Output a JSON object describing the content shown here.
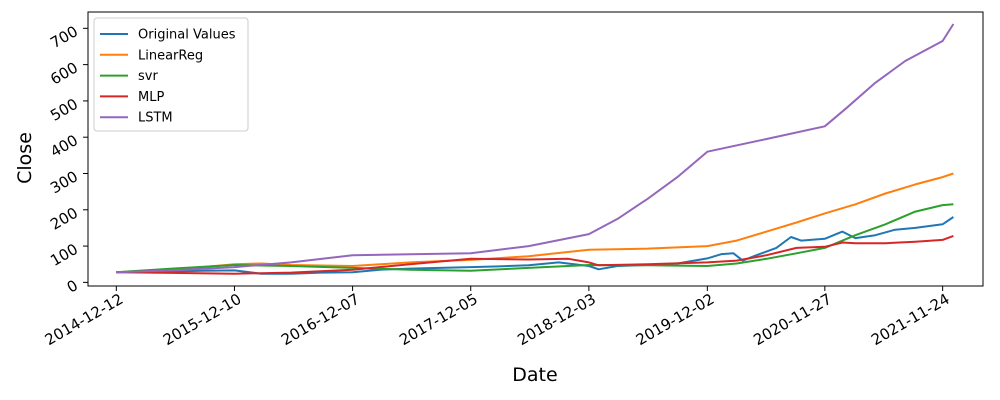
{
  "chart_data": {
    "type": "line",
    "xlabel": "Date",
    "ylabel": "Close",
    "x_ticks": [
      "2014-12-12",
      "2015-12-10",
      "2016-12-07",
      "2017-12-05",
      "2018-12-03",
      "2019-12-02",
      "2020-11-27",
      "2021-11-24"
    ],
    "y_ticks": [
      0,
      100,
      200,
      300,
      400,
      500,
      600,
      700
    ],
    "xlim": [
      "2014-09-16",
      "2022-03-28"
    ],
    "ylim": [
      -10,
      745
    ],
    "grid": false,
    "legend_position": "top-left",
    "series": [
      {
        "name": "Original Values",
        "color": "#1f77b4",
        "points": [
          [
            "2014-12-12",
            28
          ],
          [
            "2015-03-01",
            29
          ],
          [
            "2015-06-01",
            30
          ],
          [
            "2015-09-01",
            32
          ],
          [
            "2015-12-10",
            33
          ],
          [
            "2016-03-01",
            24
          ],
          [
            "2016-06-01",
            24
          ],
          [
            "2016-09-01",
            27
          ],
          [
            "2016-12-07",
            28
          ],
          [
            "2017-03-01",
            35
          ],
          [
            "2017-06-01",
            38
          ],
          [
            "2017-09-01",
            40
          ],
          [
            "2017-12-05",
            42
          ],
          [
            "2018-03-01",
            44
          ],
          [
            "2018-06-01",
            47
          ],
          [
            "2018-09-01",
            55
          ],
          [
            "2018-12-03",
            45
          ],
          [
            "2019-01-02",
            36
          ],
          [
            "2019-03-01",
            45
          ],
          [
            "2019-06-01",
            48
          ],
          [
            "2019-09-01",
            52
          ],
          [
            "2019-12-02",
            66
          ],
          [
            "2020-01-15",
            78
          ],
          [
            "2020-02-20",
            80
          ],
          [
            "2020-03-20",
            60
          ],
          [
            "2020-05-01",
            75
          ],
          [
            "2020-07-01",
            95
          ],
          [
            "2020-08-15",
            125
          ],
          [
            "2020-09-15",
            115
          ],
          [
            "2020-11-27",
            120
          ],
          [
            "2021-01-20",
            140
          ],
          [
            "2021-03-01",
            122
          ],
          [
            "2021-05-01",
            130
          ],
          [
            "2021-07-01",
            145
          ],
          [
            "2021-09-01",
            150
          ],
          [
            "2021-11-24",
            160
          ],
          [
            "2021-12-27",
            180
          ]
        ]
      },
      {
        "name": "LinearReg",
        "color": "#ff7f0e",
        "points": [
          [
            "2014-12-12",
            28
          ],
          [
            "2015-06-01",
            35
          ],
          [
            "2015-12-10",
            50
          ],
          [
            "2016-03-01",
            52
          ],
          [
            "2016-06-01",
            48
          ],
          [
            "2016-12-07",
            45
          ],
          [
            "2017-06-01",
            55
          ],
          [
            "2017-12-05",
            62
          ],
          [
            "2018-06-01",
            72
          ],
          [
            "2018-12-03",
            90
          ],
          [
            "2019-06-01",
            93
          ],
          [
            "2019-12-02",
            100
          ],
          [
            "2020-03-01",
            115
          ],
          [
            "2020-06-01",
            140
          ],
          [
            "2020-09-01",
            165
          ],
          [
            "2020-11-27",
            190
          ],
          [
            "2021-03-01",
            215
          ],
          [
            "2021-06-01",
            245
          ],
          [
            "2021-09-01",
            270
          ],
          [
            "2021-11-24",
            290
          ],
          [
            "2021-12-27",
            300
          ]
        ]
      },
      {
        "name": "svr",
        "color": "#2ca02c",
        "points": [
          [
            "2014-12-12",
            28
          ],
          [
            "2015-06-01",
            38
          ],
          [
            "2015-12-10",
            48
          ],
          [
            "2016-06-01",
            45
          ],
          [
            "2016-12-07",
            40
          ],
          [
            "2017-06-01",
            35
          ],
          [
            "2017-12-05",
            32
          ],
          [
            "2018-06-01",
            40
          ],
          [
            "2018-12-03",
            48
          ],
          [
            "2019-06-01",
            47
          ],
          [
            "2019-12-02",
            45
          ],
          [
            "2020-03-01",
            52
          ],
          [
            "2020-06-01",
            65
          ],
          [
            "2020-09-01",
            80
          ],
          [
            "2020-11-27",
            95
          ],
          [
            "2021-03-01",
            130
          ],
          [
            "2021-06-01",
            160
          ],
          [
            "2021-09-01",
            195
          ],
          [
            "2021-11-24",
            213
          ],
          [
            "2021-12-27",
            215
          ]
        ]
      },
      {
        "name": "MLP",
        "color": "#d62728",
        "points": [
          [
            "2014-12-12",
            28
          ],
          [
            "2015-06-01",
            26
          ],
          [
            "2015-12-10",
            24
          ],
          [
            "2016-06-01",
            27
          ],
          [
            "2016-12-07",
            35
          ],
          [
            "2017-06-01",
            50
          ],
          [
            "2017-12-05",
            65
          ],
          [
            "2018-06-01",
            63
          ],
          [
            "2018-10-01",
            65
          ],
          [
            "2018-12-03",
            55
          ],
          [
            "2019-01-02",
            47
          ],
          [
            "2019-06-01",
            50
          ],
          [
            "2019-12-02",
            55
          ],
          [
            "2020-03-01",
            60
          ],
          [
            "2020-06-01",
            75
          ],
          [
            "2020-09-01",
            95
          ],
          [
            "2020-11-27",
            98
          ],
          [
            "2021-01-20",
            110
          ],
          [
            "2021-03-01",
            108
          ],
          [
            "2021-06-01",
            108
          ],
          [
            "2021-09-01",
            112
          ],
          [
            "2021-11-24",
            117
          ],
          [
            "2021-12-27",
            128
          ]
        ]
      },
      {
        "name": "LSTM",
        "color": "#9467bd",
        "points": [
          [
            "2014-12-12",
            28
          ],
          [
            "2015-06-01",
            33
          ],
          [
            "2015-12-10",
            42
          ],
          [
            "2016-06-01",
            55
          ],
          [
            "2016-12-07",
            75
          ],
          [
            "2017-12-05",
            80
          ],
          [
            "2018-06-01",
            100
          ],
          [
            "2018-12-03",
            133
          ],
          [
            "2019-03-01",
            175
          ],
          [
            "2019-06-01",
            230
          ],
          [
            "2019-09-01",
            290
          ],
          [
            "2019-12-02",
            360
          ],
          [
            "2020-06-01",
            395
          ],
          [
            "2020-11-27",
            430
          ],
          [
            "2021-02-01",
            480
          ],
          [
            "2021-05-01",
            550
          ],
          [
            "2021-08-01",
            610
          ],
          [
            "2021-11-24",
            665
          ],
          [
            "2021-12-27",
            712
          ]
        ]
      }
    ]
  }
}
